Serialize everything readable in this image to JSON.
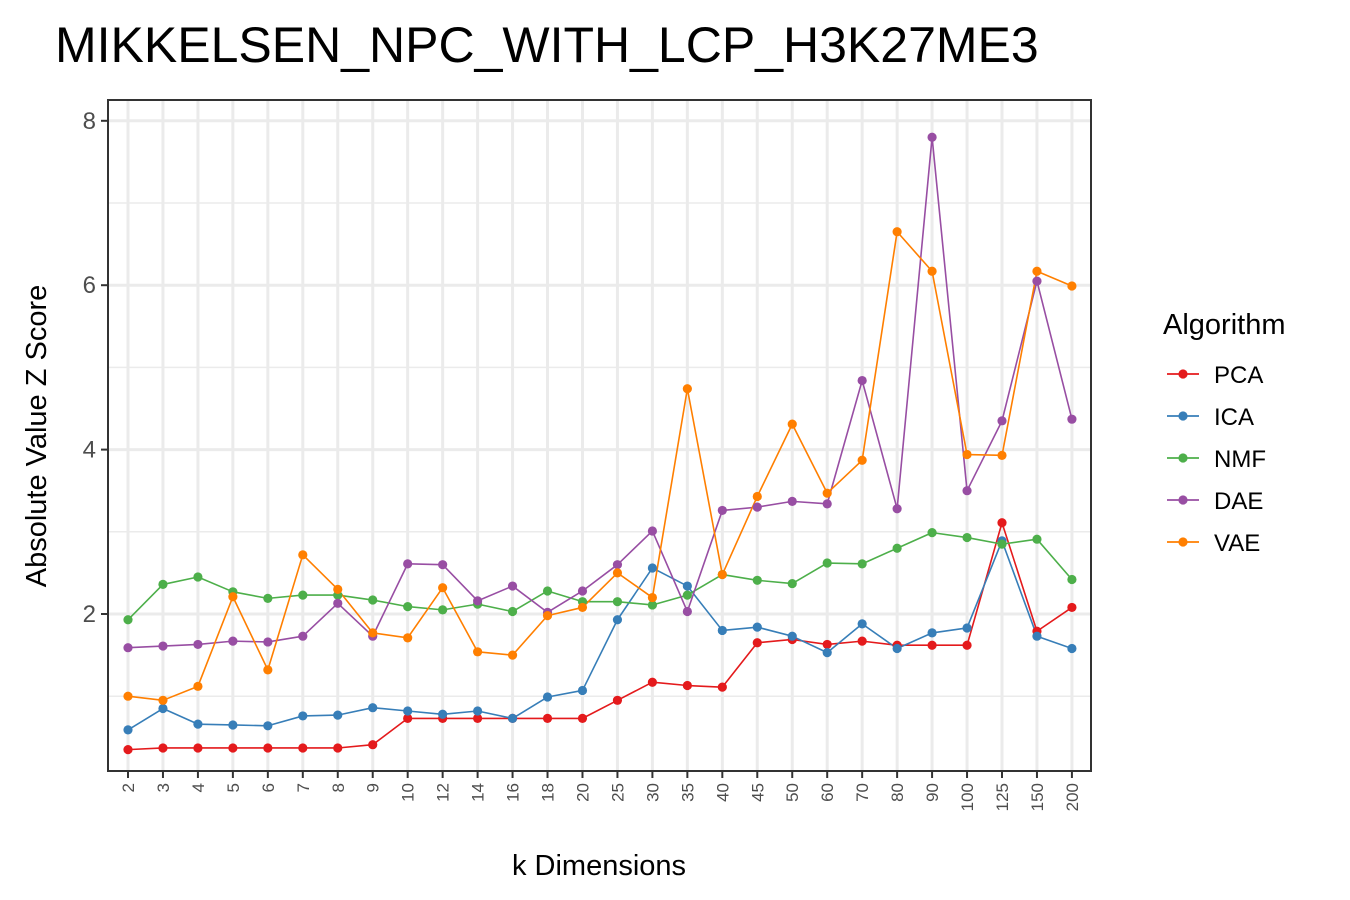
{
  "chart_data": {
    "type": "line",
    "title": "MIKKELSEN_NPC_WITH_LCP_H3K27ME3",
    "xlabel": "k Dimensions",
    "ylabel": "Absolute Value Z Score",
    "categories": [
      "2",
      "3",
      "4",
      "5",
      "6",
      "7",
      "8",
      "9",
      "10",
      "12",
      "14",
      "16",
      "18",
      "20",
      "25",
      "30",
      "35",
      "40",
      "45",
      "50",
      "60",
      "70",
      "80",
      "90",
      "100",
      "125",
      "150",
      "200"
    ],
    "yticks": [
      2,
      4,
      6,
      8
    ],
    "ylim": [
      0,
      8.2
    ],
    "grid": true,
    "legend": {
      "title": "Algorithm",
      "position": "right"
    },
    "series": [
      {
        "name": "PCA",
        "color": "#e41a1c",
        "values": [
          0.35,
          0.37,
          0.37,
          0.37,
          0.37,
          0.37,
          0.37,
          0.41,
          0.73,
          0.73,
          0.73,
          0.73,
          0.73,
          0.73,
          0.95,
          1.17,
          1.13,
          1.11,
          1.65,
          1.69,
          1.63,
          1.67,
          1.62,
          1.62,
          1.62,
          3.11,
          1.79,
          2.08
        ]
      },
      {
        "name": "ICA",
        "color": "#377eb8",
        "values": [
          0.59,
          0.85,
          0.66,
          0.65,
          0.64,
          0.76,
          0.77,
          0.86,
          0.82,
          0.78,
          0.82,
          0.73,
          0.99,
          1.07,
          1.93,
          2.56,
          2.34,
          1.8,
          1.84,
          1.73,
          1.53,
          1.88,
          1.58,
          1.77,
          1.83,
          2.89,
          1.73,
          1.58
        ]
      },
      {
        "name": "NMF",
        "color": "#4daf4a",
        "values": [
          1.93,
          2.36,
          2.45,
          2.27,
          2.19,
          2.23,
          2.23,
          2.17,
          2.09,
          2.05,
          2.12,
          2.03,
          2.28,
          2.15,
          2.15,
          2.11,
          2.23,
          2.48,
          2.41,
          2.37,
          2.62,
          2.61,
          2.8,
          2.99,
          2.93,
          2.85,
          2.91,
          2.42
        ]
      },
      {
        "name": "DAE",
        "color": "#984ea3",
        "values": [
          1.59,
          1.61,
          1.63,
          1.67,
          1.66,
          1.73,
          2.13,
          1.73,
          2.61,
          2.6,
          2.16,
          2.34,
          2.02,
          2.28,
          2.6,
          3.01,
          2.03,
          3.26,
          3.3,
          3.37,
          3.34,
          4.84,
          3.28,
          7.8,
          3.5,
          4.35,
          6.05,
          4.37
        ]
      },
      {
        "name": "VAE",
        "color": "#ff7f00",
        "values": [
          1.0,
          0.95,
          1.12,
          2.21,
          1.32,
          2.72,
          2.3,
          1.77,
          1.71,
          2.32,
          1.54,
          1.5,
          1.98,
          2.08,
          2.5,
          2.2,
          4.74,
          2.48,
          3.43,
          4.31,
          3.47,
          3.87,
          6.65,
          6.17,
          3.94,
          3.93,
          6.17,
          5.99
        ]
      }
    ]
  }
}
